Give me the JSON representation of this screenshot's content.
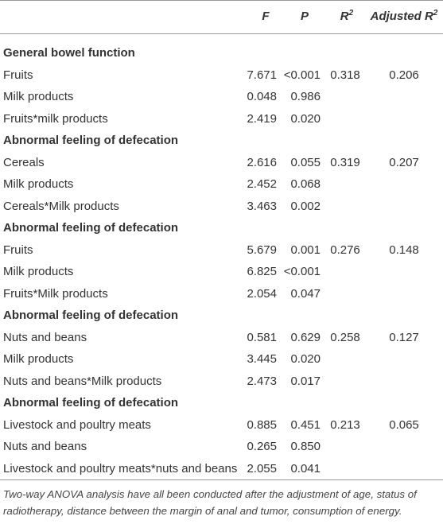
{
  "table": {
    "header": [
      {
        "text": "F"
      },
      {
        "text": "P"
      },
      {
        "text": "R",
        "sup": "2"
      },
      {
        "text": "Adjusted R",
        "sup": "2"
      }
    ],
    "sections": [
      {
        "title": "General bowel function",
        "rows": [
          [
            "Fruits",
            "7.671",
            "<0.001",
            "0.318",
            "0.206"
          ],
          [
            "Milk products",
            "0.048",
            "0.986"
          ],
          [
            "Fruits*milk products",
            "2.419",
            "0.020"
          ]
        ]
      },
      {
        "title": "Abnormal feeling of defecation",
        "rows": [
          [
            "Cereals",
            "2.616",
            "0.055",
            "0.319",
            "0.207"
          ],
          [
            "Milk products",
            "2.452",
            "0.068"
          ],
          [
            "Cereals*Milk products",
            "3.463",
            "0.002"
          ]
        ]
      },
      {
        "title": "Abnormal feeling of defecation",
        "rows": [
          [
            "Fruits",
            "5.679",
            "0.001",
            "0.276",
            "0.148"
          ],
          [
            "Milk products",
            "6.825",
            "<0.001"
          ],
          [
            "Fruits*Milk products",
            "2.054",
            "0.047"
          ]
        ]
      },
      {
        "title": "Abnormal feeling of defecation",
        "rows": [
          [
            "Nuts and beans",
            "0.581",
            "0.629",
            "0.258",
            "0.127"
          ],
          [
            "Milk products",
            "3.445",
            "0.020"
          ],
          [
            "Nuts and beans*Milk products",
            "2.473",
            "0.017"
          ]
        ]
      },
      {
        "title": "Abnormal feeling of defecation",
        "rows": [
          [
            "Livestock and poultry meats",
            "0.885",
            "0.451",
            "0.213",
            "0.065"
          ],
          [
            "Nuts and beans",
            "0.265",
            "0.850"
          ],
          [
            "Livestock and poultry meats*nuts and beans",
            "2.055",
            "0.041"
          ]
        ]
      }
    ],
    "footnote": "Two-way ANOVA analysis have all been conducted after the adjustment of age, status of radiotherapy, distance between the margin of anal and tumor, consumption of energy."
  }
}
